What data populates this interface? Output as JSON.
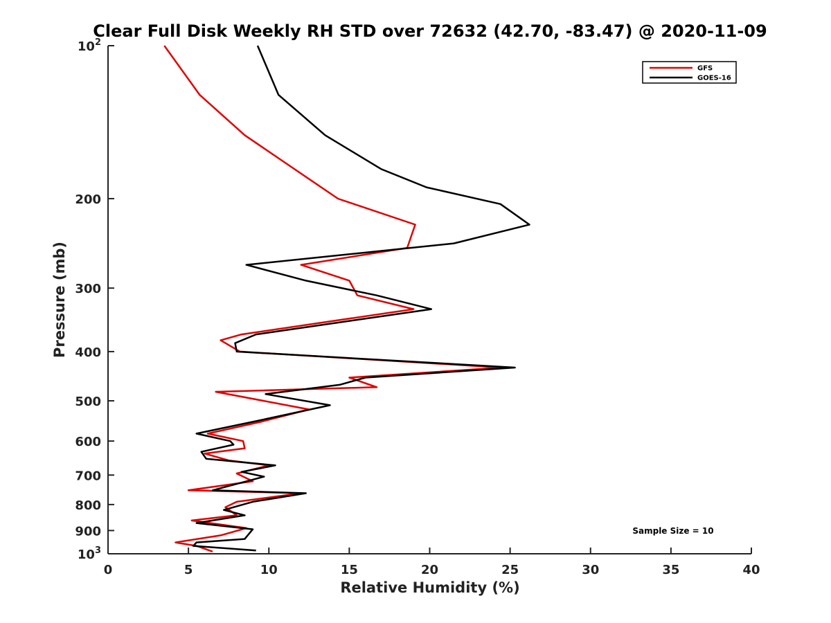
{
  "chart_data": {
    "type": "line",
    "title": "Clear Full Disk Weekly RH STD over 72632 (42.70, -83.47) @ 2020-11-09",
    "xlabel": "Relative Humidity (%)",
    "ylabel": "Pressure (mb)",
    "xlim": [
      0,
      40
    ],
    "ylim": [
      100,
      1000
    ],
    "y_scale": "log",
    "y_reversed": true,
    "grid": false,
    "legend_position": "top-right",
    "x_ticks": [
      "0",
      "5",
      "10",
      "15",
      "20",
      "25",
      "30",
      "35",
      "40"
    ],
    "y_ticks": [
      {
        "value": 100,
        "label": "10",
        "sup": "2"
      },
      {
        "value": 200,
        "label": "200",
        "sup": ""
      },
      {
        "value": 300,
        "label": "300",
        "sup": ""
      },
      {
        "value": 400,
        "label": "400",
        "sup": ""
      },
      {
        "value": 500,
        "label": "500",
        "sup": ""
      },
      {
        "value": 600,
        "label": "600",
        "sup": ""
      },
      {
        "value": 700,
        "label": "700",
        "sup": ""
      },
      {
        "value": 800,
        "label": "800",
        "sup": ""
      },
      {
        "value": 900,
        "label": "900",
        "sup": ""
      },
      {
        "value": 1000,
        "label": "10",
        "sup": "3"
      }
    ],
    "annotation": "Sample Size = 10",
    "series": [
      {
        "name": "GFS",
        "color": "#e00000",
        "points": [
          [
            3.5,
            100
          ],
          [
            5.7,
            125
          ],
          [
            8.5,
            150
          ],
          [
            11.6,
            175
          ],
          [
            14.3,
            200
          ],
          [
            19.1,
            225
          ],
          [
            18.6,
            250
          ],
          [
            12.0,
            270
          ],
          [
            15.0,
            290
          ],
          [
            15.5,
            310
          ],
          [
            19.0,
            330
          ],
          [
            8.3,
            370
          ],
          [
            7.0,
            380
          ],
          [
            8.2,
            400
          ],
          [
            24.5,
            430
          ],
          [
            15.0,
            450
          ],
          [
            16.7,
            470
          ],
          [
            6.7,
            480
          ],
          [
            12.5,
            520
          ],
          [
            9.5,
            550
          ],
          [
            6.2,
            580
          ],
          [
            8.4,
            600
          ],
          [
            8.5,
            620
          ],
          [
            6.0,
            635
          ],
          [
            7.5,
            655
          ],
          [
            10.0,
            670
          ],
          [
            8.0,
            695
          ],
          [
            9.0,
            720
          ],
          [
            5.0,
            750
          ],
          [
            12.0,
            760
          ],
          [
            8.0,
            790
          ],
          [
            7.3,
            810
          ],
          [
            8.0,
            840
          ],
          [
            5.2,
            860
          ],
          [
            8.6,
            890
          ],
          [
            7.0,
            920
          ],
          [
            4.2,
            950
          ],
          [
            5.5,
            965
          ],
          [
            6.5,
            990
          ]
        ]
      },
      {
        "name": "GOES-16",
        "color": "#000000",
        "points": [
          [
            9.3,
            100
          ],
          [
            10.6,
            125
          ],
          [
            13.5,
            150
          ],
          [
            17.0,
            175
          ],
          [
            19.8,
            190
          ],
          [
            24.4,
            205
          ],
          [
            26.2,
            225
          ],
          [
            21.5,
            245
          ],
          [
            8.6,
            270
          ],
          [
            12.3,
            290
          ],
          [
            16.7,
            310
          ],
          [
            20.1,
            330
          ],
          [
            9.2,
            370
          ],
          [
            7.9,
            385
          ],
          [
            8.0,
            400
          ],
          [
            25.3,
            430
          ],
          [
            16.0,
            450
          ],
          [
            14.4,
            465
          ],
          [
            9.8,
            485
          ],
          [
            13.8,
            510
          ],
          [
            9.0,
            550
          ],
          [
            5.5,
            580
          ],
          [
            7.6,
            600
          ],
          [
            7.8,
            610
          ],
          [
            5.8,
            630
          ],
          [
            6.1,
            650
          ],
          [
            10.4,
            670
          ],
          [
            8.3,
            690
          ],
          [
            9.7,
            705
          ],
          [
            6.5,
            750
          ],
          [
            12.3,
            760
          ],
          [
            9.0,
            790
          ],
          [
            7.2,
            820
          ],
          [
            8.5,
            840
          ],
          [
            5.5,
            870
          ],
          [
            9.0,
            895
          ],
          [
            8.5,
            935
          ],
          [
            5.5,
            950
          ],
          [
            5.3,
            965
          ],
          [
            9.2,
            985
          ]
        ]
      }
    ]
  }
}
